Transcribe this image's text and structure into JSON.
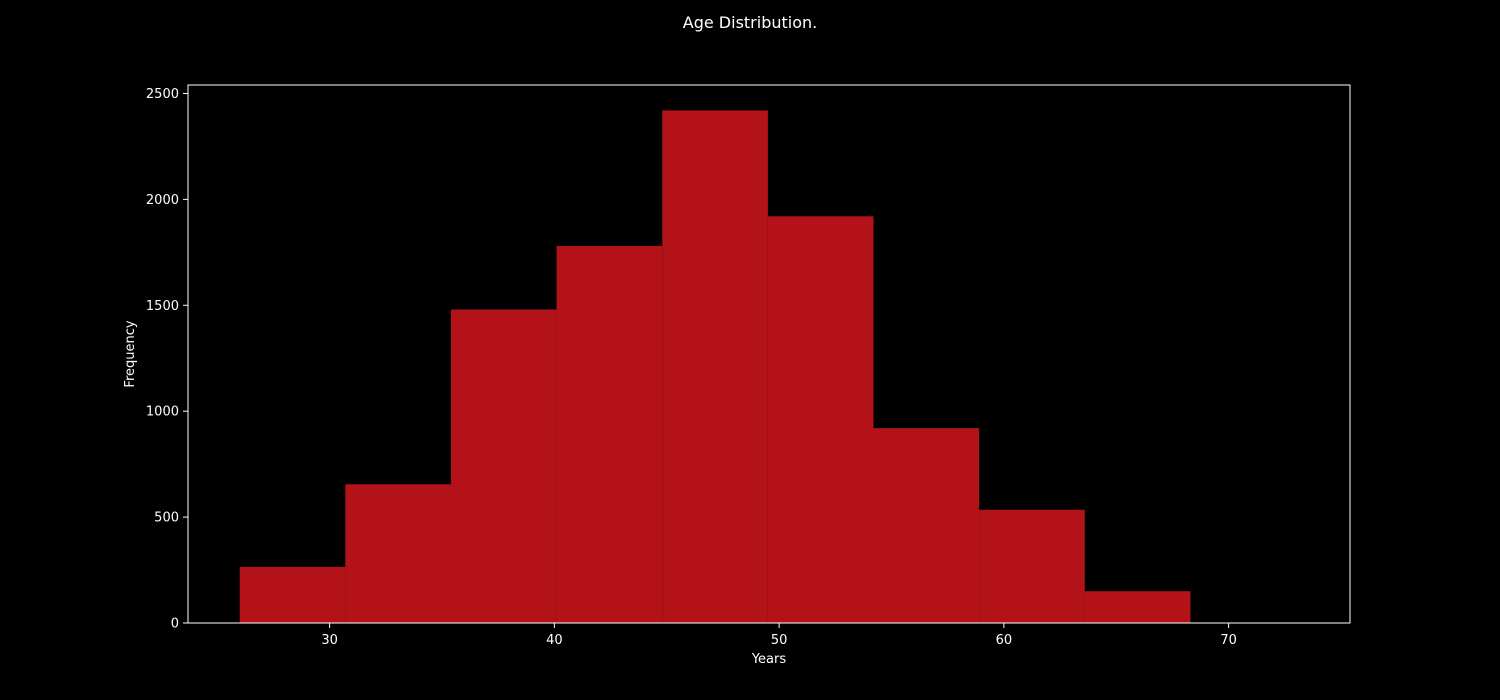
{
  "chart_data": {
    "type": "bar",
    "title": "Age Distribution.",
    "xlabel": "Years",
    "ylabel": "Frequency",
    "bin_edges": [
      26.0,
      30.7,
      35.4,
      40.1,
      44.8,
      49.5,
      54.2,
      58.9,
      63.6,
      68.3
    ],
    "values": [
      265,
      655,
      1480,
      1780,
      2420,
      1920,
      920,
      535,
      150
    ],
    "xlim": [
      23.7,
      75.4
    ],
    "ylim": [
      0,
      2540
    ],
    "xticks": [
      30,
      40,
      50,
      60,
      70
    ],
    "yticks": [
      0,
      500,
      1000,
      1500,
      2000,
      2500
    ],
    "bar_color": "#b31318",
    "background_color": "#000000",
    "axis_color": "#ffffff",
    "grid": false
  }
}
